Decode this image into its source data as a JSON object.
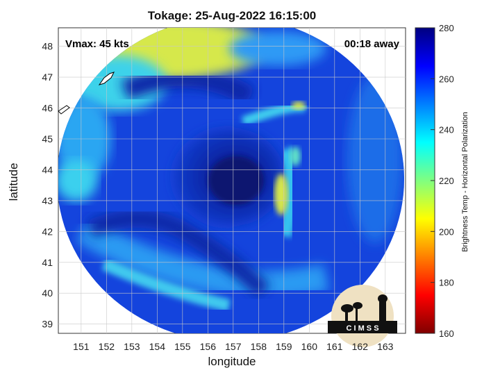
{
  "map": {
    "title": "Tokage: 25-Aug-2022 16:15:00",
    "xlabel": "longitude",
    "ylabel": "latitude",
    "vmax_text": "Vmax: 45 kts",
    "away_text": "00:18 away",
    "x_ticks": [
      "151",
      "152",
      "153",
      "154",
      "155",
      "156",
      "157",
      "158",
      "159",
      "160",
      "161",
      "162",
      "163"
    ],
    "y_ticks": [
      "48",
      "47",
      "46",
      "45",
      "44",
      "43",
      "42",
      "41",
      "40",
      "39"
    ],
    "lon_range": [
      150.1,
      163.8
    ],
    "lat_range": [
      38.7,
      48.6
    ],
    "grid": true
  },
  "colorbar": {
    "label": "Brightness Temp - Horizontal Polarization",
    "ticks": [
      "280",
      "260",
      "240",
      "220",
      "200",
      "180",
      "160"
    ],
    "range": [
      160,
      280
    ],
    "colormap": "jet"
  },
  "logo": {
    "text": "C I M S S"
  },
  "colors": {
    "cold_core": "#0a1a8c",
    "dark_blue": "#0f2fc4",
    "mid_blue": "#1550e6",
    "light_blue": "#1f8cf5",
    "cyan": "#3ad0ee",
    "yellow_band": "#d8e84a"
  }
}
